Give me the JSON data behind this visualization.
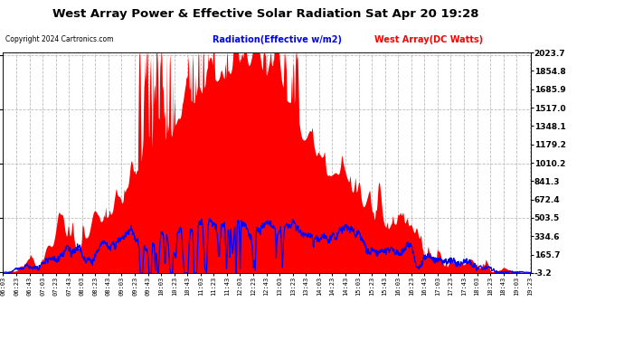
{
  "title": "West Array Power & Effective Solar Radiation Sat Apr 20 19:28",
  "copyright": "Copyright 2024 Cartronics.com",
  "legend_radiation": "Radiation(Effective w/m2)",
  "legend_west": "West Array(DC Watts)",
  "y_ticks": [
    2023.7,
    1854.8,
    1685.9,
    1517.0,
    1348.1,
    1179.2,
    1010.2,
    841.3,
    672.4,
    503.5,
    334.6,
    165.7,
    -3.2
  ],
  "ylim": [
    -3.2,
    2023.7
  ],
  "background_color": "#ffffff",
  "plot_bg_color": "#ffffff",
  "grid_color": "#bbbbbb",
  "radiation_color": "#0000ff",
  "west_fill_color": "#ff0000",
  "title_color": "#000000",
  "copyright_color": "#000000",
  "legend_radiation_color": "#0000ff",
  "legend_west_color": "#ff0000",
  "x_start_hour": 6,
  "x_start_min": 3,
  "x_end_hour": 19,
  "x_end_min": 24,
  "n_points": 1200
}
